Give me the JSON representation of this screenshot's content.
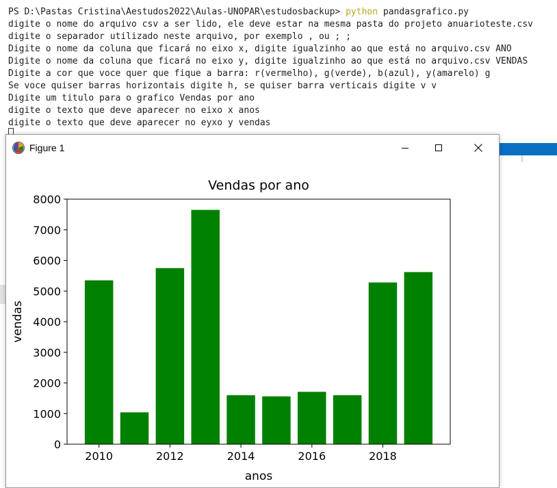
{
  "terminal": {
    "prompt": "PS D:\\Pastas Cristina\\Aestudos2022\\Aulas-UNOPAR\\estudosbackup>",
    "command": "python",
    "argument": "pandasgrafico.py",
    "lines": [
      "digite o nome do arquivo csv a ser lido, ele deve estar na mesma pasta do projeto anuarioteste.csv",
      "digite o separador utilizado neste arquivo, por exemplo , ou ; ;",
      "Digite o nome da coluna que ficará no eixo x, digite igualzinho ao que está no arquivo.csv ANO",
      "Digite o nome da coluna que ficará no eixo y, digite igualzinho ao que está no arquivo.csv VENDAS",
      "Digite a cor que voce quer que fique a barra: r(vermelho), g(verde), b(azul), y(amarelo) g",
      "Se voce quiser barras horizontais digite h, se quiser barra verticais digite v v",
      "Digite um titulo para o grafico Vendas por ano",
      "digite o texto que deve aparecer no eixo x anos",
      "digite o texto que deve aparecer no eyxo y vendas"
    ]
  },
  "window": {
    "title": "Figure 1",
    "icon": "matplotlib-icon",
    "controls": [
      "minimize-icon",
      "maximize-icon",
      "close-icon"
    ]
  },
  "chart_data": {
    "type": "bar",
    "title": "Vendas por ano",
    "xlabel": "anos",
    "ylabel": "vendas",
    "x": [
      2010,
      2011,
      2012,
      2013,
      2014,
      2015,
      2016,
      2017,
      2018,
      2019
    ],
    "values": [
      5350,
      1040,
      5750,
      7650,
      1600,
      1560,
      1710,
      1600,
      5280,
      5620
    ],
    "bar_color": "#008000",
    "xlim": [
      2009.1,
      2019.9
    ],
    "ylim": [
      0,
      8000
    ],
    "xticks": [
      2010,
      2012,
      2014,
      2016,
      2018
    ],
    "yticks": [
      0,
      1000,
      2000,
      3000,
      4000,
      5000,
      6000,
      7000,
      8000
    ]
  }
}
